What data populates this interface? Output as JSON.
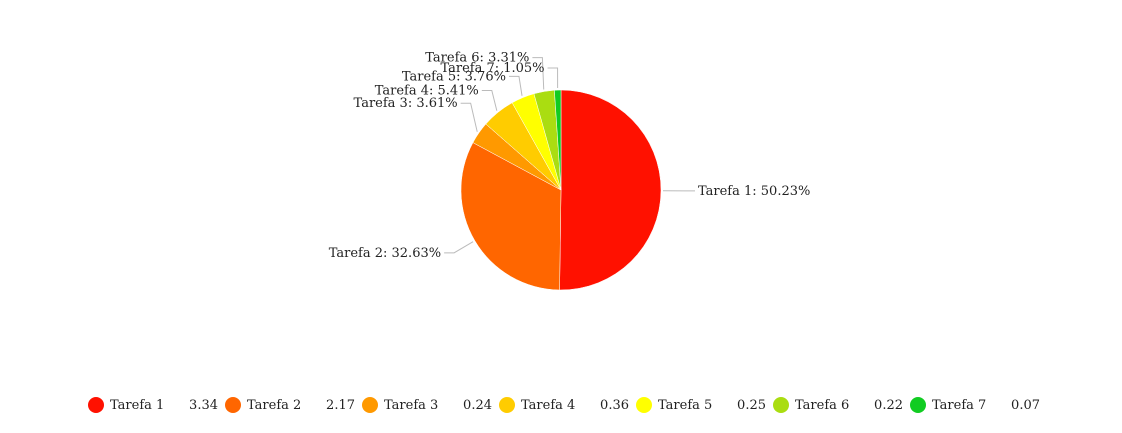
{
  "chart_data": {
    "type": "pie",
    "title": "",
    "start_angle_deg": 0,
    "direction": "clockwise",
    "label_format": "{name}: {percent}",
    "slices": [
      {
        "name": "Tarefa 1",
        "value": 3.34,
        "percent": "50.23%",
        "color": "#ff1100"
      },
      {
        "name": "Tarefa 2",
        "value": 2.17,
        "percent": "32.63%",
        "color": "#ff6600"
      },
      {
        "name": "Tarefa 3",
        "value": 0.24,
        "percent": "3.61%",
        "color": "#ff9900"
      },
      {
        "name": "Tarefa 4",
        "value": 0.36,
        "percent": "5.41%",
        "color": "#ffcc00"
      },
      {
        "name": "Tarefa 5",
        "value": 0.25,
        "percent": "3.76%",
        "color": "#ffff00"
      },
      {
        "name": "Tarefa 6",
        "value": 0.22,
        "percent": "3.31%",
        "color": "#aadd11"
      },
      {
        "name": "Tarefa 7",
        "value": 0.07,
        "percent": "1.05%",
        "color": "#11cc22"
      }
    ],
    "legend_position": "bottom"
  }
}
